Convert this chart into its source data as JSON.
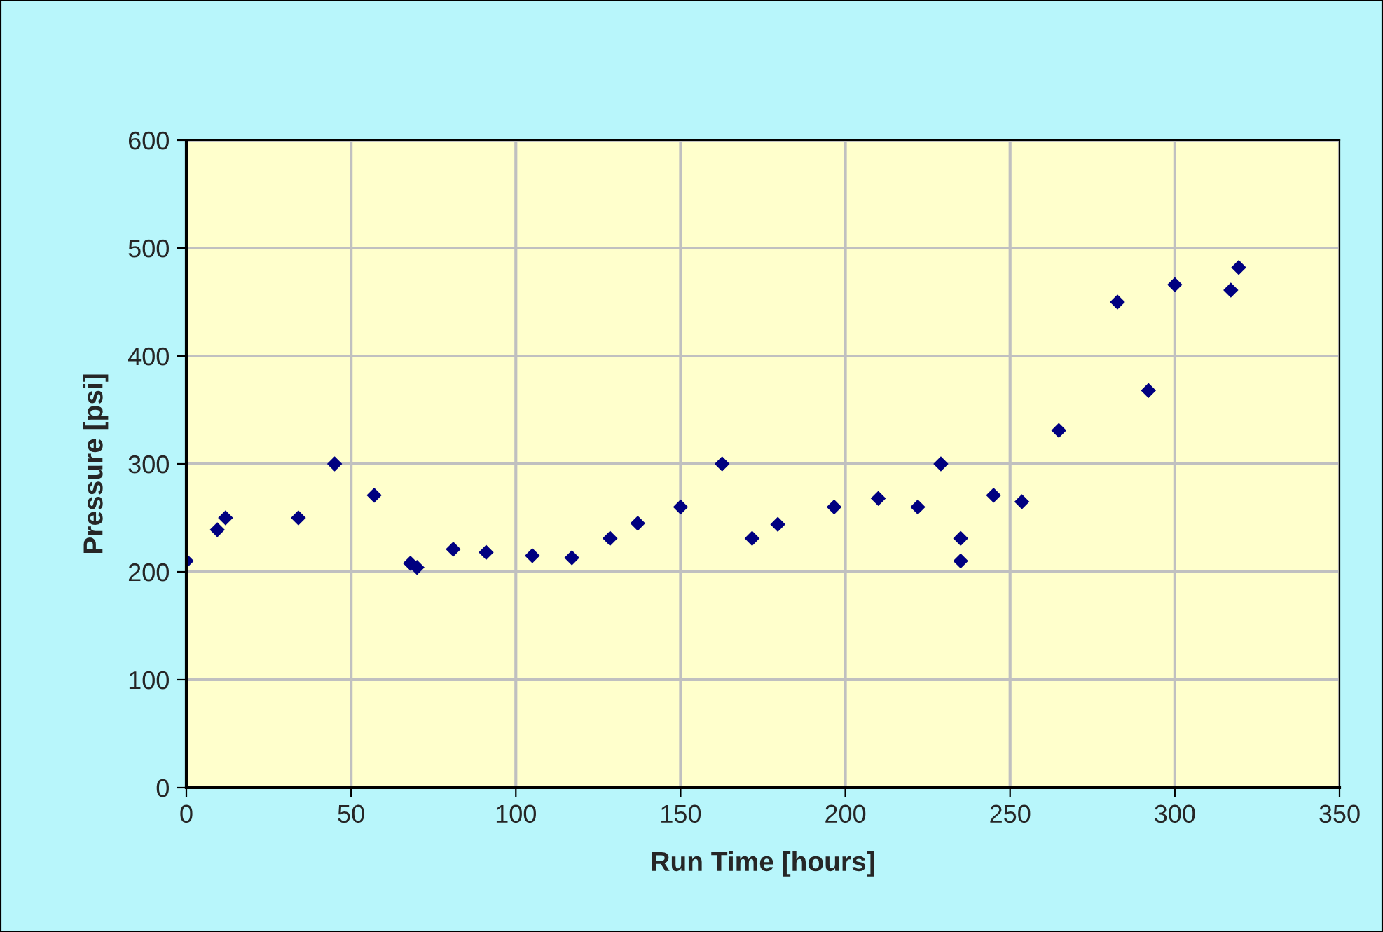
{
  "chart_data": {
    "type": "scatter",
    "xlabel": "Run Time [hours]",
    "ylabel": "Pressure [psi]",
    "x": [
      0,
      9.4,
      11.9,
      34,
      45,
      57,
      68,
      70,
      81,
      91,
      105,
      117,
      128.6,
      137,
      150,
      162.6,
      171.7,
      179.5,
      196.6,
      210,
      222,
      229,
      235,
      235,
      245,
      253.6,
      264.8,
      282.6,
      292,
      300,
      317,
      319.4
    ],
    "series": [
      {
        "color": "#000080",
        "values": [
          210,
          239,
          250,
          250,
          300,
          271,
          208,
          204,
          221,
          218,
          215,
          213,
          231,
          245,
          260,
          300,
          231,
          244,
          260,
          268,
          260,
          300,
          231,
          210,
          271,
          265,
          331,
          450,
          368,
          466,
          461,
          482
        ]
      }
    ],
    "xlim": [
      0,
      350
    ],
    "xticks": [
      0,
      50,
      100,
      150,
      200,
      250,
      300,
      350
    ],
    "ylim": [
      0,
      600
    ],
    "yticks": [
      0,
      100,
      200,
      300,
      400,
      500,
      600
    ],
    "grid": true,
    "marker": "diamond"
  }
}
